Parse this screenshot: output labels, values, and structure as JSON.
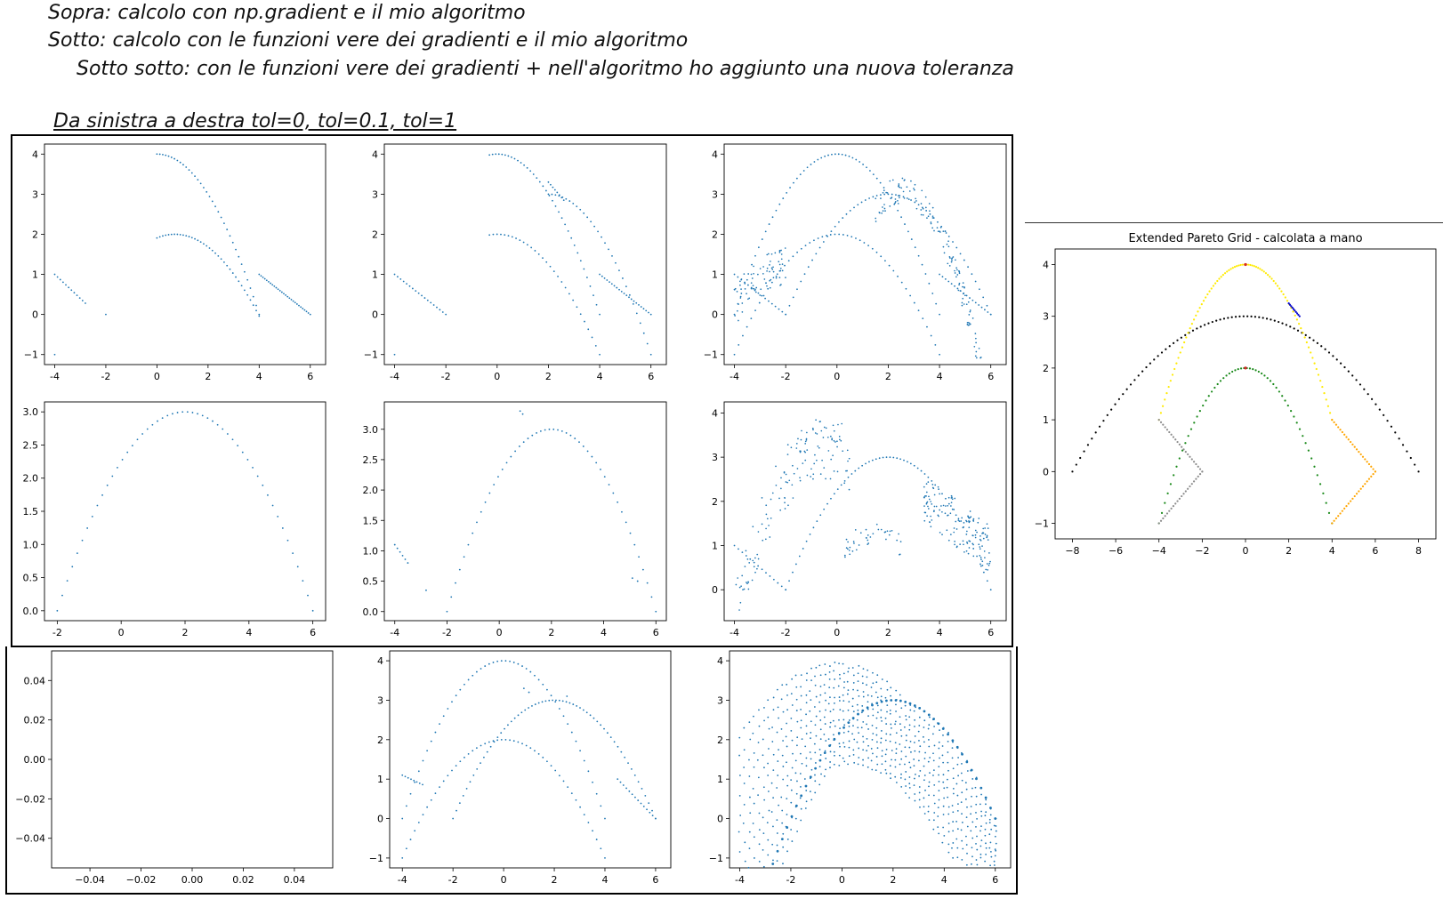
{
  "notes": {
    "line1": "Sopra: calcolo con np.gradient e il mio algoritmo",
    "line2": "Sotto: calcolo con le funzioni vere dei gradienti e il mio algoritmo",
    "line3": "Sotto sotto: con le funzioni vere dei gradienti + nell'algoritmo ho aggiunto una nuova toleranza",
    "line4": "Da sinistra a destra tol=0, tol=0.1, tol=1"
  },
  "colors": {
    "scatter": "#1f77b4",
    "yellow": "#ffeb00",
    "black": "#000000",
    "green": "#1a8a1a",
    "gray": "#8c8c8c",
    "orange": "#ffa500",
    "blue": "#0000cc",
    "red": "#d62728"
  },
  "chart_data": [
    {
      "id": "r1c1",
      "type": "scatter",
      "xlim": [
        -4.4,
        6.6
      ],
      "ylim": [
        -1.25,
        4.25
      ],
      "xticks": [
        "-4",
        "-2",
        "0",
        "2",
        "4",
        "6"
      ],
      "yticks": [
        "−1",
        "0",
        "1",
        "2",
        "3",
        "4"
      ],
      "series": [
        {
          "kind": "curve",
          "name": "",
          "f": "4-0.25*(x-0)^2",
          "x_range": [
            0,
            4
          ],
          "n": 36
        },
        {
          "kind": "curve",
          "name": "",
          "f": "2-0.1875*(x-0.7)^2",
          "x_range": [
            0,
            4
          ],
          "n": 36
        },
        {
          "kind": "curve",
          "name": "",
          "f": "1-(x-4)/2",
          "x_range": [
            4,
            6
          ],
          "n": 28
        },
        {
          "kind": "curve",
          "name": "",
          "f": "1-(x+4)*0.6",
          "x_range": [
            -4,
            -2.8
          ],
          "n": 12
        },
        {
          "kind": "points",
          "x": [
            -2,
            -4
          ],
          "y": [
            0,
            -1
          ]
        }
      ]
    },
    {
      "id": "r1c2",
      "type": "scatter",
      "xlim": [
        -4.4,
        6.6
      ],
      "ylim": [
        -1.25,
        4.25
      ],
      "xticks": [
        "-4",
        "-2",
        "0",
        "2",
        "4",
        "6"
      ],
      "yticks": [
        "−1",
        "0",
        "1",
        "2",
        "3",
        "4"
      ],
      "series": [
        {
          "kind": "curve",
          "f": "4-0.25*x^2",
          "x_range": [
            -0.3,
            4
          ],
          "n": 36
        },
        {
          "kind": "curve",
          "f": "2-0.1875*x^2",
          "x_range": [
            -0.3,
            4
          ],
          "n": 30
        },
        {
          "kind": "curve",
          "f": "3.3-(x-2)*0.75",
          "x_range": [
            2,
            2.6
          ],
          "n": 8
        },
        {
          "kind": "curve",
          "f": "3-0.25*(x-2)^2",
          "x_range": [
            2,
            6
          ],
          "n": 30
        },
        {
          "kind": "curve",
          "f": "1-(x-4)/2",
          "x_range": [
            4,
            6
          ],
          "n": 22
        },
        {
          "kind": "curve",
          "f": "1-(x+4)/2",
          "x_range": [
            -4,
            -2
          ],
          "n": 18
        },
        {
          "kind": "points",
          "x": [
            -4
          ],
          "y": [
            -1
          ]
        }
      ]
    },
    {
      "id": "r1c3",
      "type": "scatter",
      "xlim": [
        -4.4,
        6.6
      ],
      "ylim": [
        -1.25,
        4.25
      ],
      "xticks": [
        "-4",
        "-2",
        "0",
        "2",
        "4",
        "6"
      ],
      "yticks": [
        "−1",
        "0",
        "1",
        "2",
        "3",
        "4"
      ],
      "series": [
        {
          "kind": "curve",
          "f": "4-0.25*x^2",
          "x_range": [
            -4,
            4
          ],
          "n": 60
        },
        {
          "kind": "curve",
          "f": "2-0.1875*x^2",
          "x_range": [
            -4,
            4
          ],
          "n": 50
        },
        {
          "kind": "curve",
          "f": "3-0.1875*(x-2)^2",
          "x_range": [
            -2,
            6
          ],
          "n": 55
        },
        {
          "kind": "curve",
          "f": "1-(x+4)/2",
          "x_range": [
            -4,
            -2
          ],
          "n": 16
        },
        {
          "kind": "band",
          "f": "1.2-0.5*(x+2)^2/2",
          "x_range": [
            -4,
            -2
          ],
          "n": 80,
          "spread": 1.0
        },
        {
          "kind": "band",
          "f": "3.1-0.45*(x-2.5)^2",
          "x_range": [
            1.5,
            6
          ],
          "n": 150,
          "spread": 0.7
        },
        {
          "kind": "curve",
          "f": "1-(x-4)/2",
          "x_range": [
            4,
            6
          ],
          "n": 18
        }
      ]
    },
    {
      "id": "r2c1",
      "type": "scatter",
      "xlim": [
        -2.4,
        6.4
      ],
      "ylim": [
        -0.15,
        3.15
      ],
      "xticks": [
        "-2",
        "0",
        "2",
        "4",
        "6"
      ],
      "yticks": [
        "0.0",
        "0.5",
        "1.0",
        "1.5",
        "2.0",
        "2.5",
        "3.0"
      ],
      "series": [
        {
          "kind": "curve",
          "f": "3-0.1875*(x-2)^2",
          "x_range": [
            -2,
            6
          ],
          "n": 52
        }
      ]
    },
    {
      "id": "r2c2",
      "type": "scatter",
      "xlim": [
        -4.4,
        6.4
      ],
      "ylim": [
        -0.15,
        3.45
      ],
      "xticks": [
        "-4",
        "-2",
        "0",
        "2",
        "4",
        "6"
      ],
      "yticks": [
        "0.0",
        "0.5",
        "1.0",
        "1.5",
        "2.0",
        "2.5",
        "3.0"
      ],
      "series": [
        {
          "kind": "curve",
          "f": "3-0.1875*(x-2)^2",
          "x_range": [
            -2,
            6
          ],
          "n": 50
        },
        {
          "kind": "curve",
          "f": "1.1-(x+4)*0.6",
          "x_range": [
            -4,
            -3.5
          ],
          "n": 6
        },
        {
          "kind": "points",
          "x": [
            0.8,
            0.9,
            -2.8,
            5.1,
            5.3
          ],
          "y": [
            3.3,
            3.25,
            0.35,
            0.55,
            0.5
          ]
        }
      ]
    },
    {
      "id": "r2c3",
      "type": "scatter",
      "xlim": [
        -4.4,
        6.6
      ],
      "ylim": [
        -0.7,
        4.25
      ],
      "xticks": [
        "-4",
        "-2",
        "0",
        "2",
        "4",
        "6"
      ],
      "yticks": [
        "0",
        "1",
        "2",
        "3",
        "4"
      ],
      "series": [
        {
          "kind": "curve",
          "f": "3-0.1875*(x-2)^2",
          "x_range": [
            -2,
            6
          ],
          "n": 60
        },
        {
          "kind": "band",
          "f": "3.2-0.3*(x+0.5)^2",
          "x_range": [
            -4,
            0.5
          ],
          "n": 140,
          "spread": 1.4
        },
        {
          "kind": "band",
          "f": "1.3-0.3*(x-1.5)^2",
          "x_range": [
            0.3,
            2.6
          ],
          "n": 40,
          "spread": 0.5
        },
        {
          "kind": "band",
          "f": "1.8-0.45*(x-4)",
          "x_range": [
            3.4,
            6
          ],
          "n": 150,
          "spread": 1.1
        },
        {
          "kind": "curve",
          "f": "1-(x+4)/2",
          "x_range": [
            -4,
            -2
          ],
          "n": 14
        }
      ]
    },
    {
      "id": "r3c1",
      "type": "scatter",
      "xlim": [
        -0.055,
        0.055
      ],
      "ylim": [
        -0.055,
        0.055
      ],
      "xticks": [
        "−0.04",
        "−0.02",
        "0.00",
        "0.02",
        "0.04"
      ],
      "yticks": [
        "−0.04",
        "−0.02",
        "0.00",
        "0.02",
        "0.04"
      ],
      "series": []
    },
    {
      "id": "r3c2",
      "type": "scatter",
      "xlim": [
        -4.5,
        6.6
      ],
      "ylim": [
        -1.25,
        4.25
      ],
      "xticks": [
        "-4",
        "-2",
        "0",
        "2",
        "4",
        "6"
      ],
      "yticks": [
        "−1",
        "0",
        "1",
        "2",
        "3",
        "4"
      ],
      "series": [
        {
          "kind": "curve",
          "f": "4-0.25*x^2",
          "x_range": [
            -4,
            4
          ],
          "n": 50
        },
        {
          "kind": "curve",
          "f": "2-0.1875*x^2",
          "x_range": [
            -4,
            4
          ],
          "n": 50
        },
        {
          "kind": "curve",
          "f": "3-0.1875*(x-2)^2",
          "x_range": [
            -2,
            6
          ],
          "n": 60
        },
        {
          "kind": "curve",
          "f": "1.1-(x+4)*0.3",
          "x_range": [
            -4,
            -3.2
          ],
          "n": 8
        },
        {
          "kind": "curve",
          "f": "1-(x-4.5)/1.5",
          "x_range": [
            4.5,
            6
          ],
          "n": 14
        },
        {
          "kind": "points",
          "x": [
            0.8,
            1,
            2.5
          ],
          "y": [
            3.3,
            3.2,
            3.1
          ]
        }
      ]
    },
    {
      "id": "r3c3",
      "type": "scatter",
      "xlim": [
        -4.4,
        6.6
      ],
      "ylim": [
        -1.25,
        4.25
      ],
      "xticks": [
        "-4",
        "-2",
        "0",
        "2",
        "4",
        "6"
      ],
      "yticks": [
        "−1",
        "0",
        "1",
        "2",
        "3",
        "4"
      ],
      "series": [
        {
          "kind": "grid",
          "x_range": [
            -4,
            6
          ],
          "nx": 55,
          "ny": 14
        }
      ]
    },
    {
      "id": "pareto",
      "type": "scatter",
      "title": "Extended Pareto Grid - calcolata a mano",
      "xlim": [
        -8.8,
        8.8
      ],
      "ylim": [
        -1.3,
        4.3
      ],
      "xticks": [
        "−8",
        "−6",
        "−4",
        "−2",
        "0",
        "2",
        "4",
        "6",
        "8"
      ],
      "yticks": [
        "−1",
        "0",
        "1",
        "2",
        "3",
        "4"
      ],
      "series": [
        {
          "kind": "curve",
          "color": "black",
          "f": "3-0.046875*x^2",
          "x_range": [
            -8,
            8
          ],
          "n": 90
        },
        {
          "kind": "curve",
          "color": "yellow",
          "f": "4-0.1875*x^2",
          "x_range": [
            -4,
            4
          ],
          "n": 90
        },
        {
          "kind": "curve",
          "color": "green",
          "f": "2-0.1875*x^2",
          "x_range": [
            -4,
            4
          ],
          "n": 60
        },
        {
          "kind": "curve",
          "color": "gray",
          "f": "1-(x+4)*0.5",
          "x_range": [
            -4,
            -2
          ],
          "n": 22
        },
        {
          "kind": "curve",
          "color": "gray",
          "f": "-1+(x+4)*0.5",
          "x_range": [
            -4,
            -2
          ],
          "n": 22
        },
        {
          "kind": "curve",
          "color": "orange",
          "f": "1-(x-4)*0.5",
          "x_range": [
            4,
            6
          ],
          "n": 22
        },
        {
          "kind": "curve",
          "color": "orange",
          "f": "-1+(x-4)*0.5",
          "x_range": [
            4,
            6
          ],
          "n": 22
        },
        {
          "kind": "curve",
          "color": "blue",
          "f": "3.25-(x-2)*0.5",
          "x_range": [
            2,
            2.5
          ],
          "n": 10
        },
        {
          "kind": "points",
          "color": "red",
          "x": [
            0,
            0
          ],
          "y": [
            4,
            2
          ]
        }
      ]
    }
  ]
}
